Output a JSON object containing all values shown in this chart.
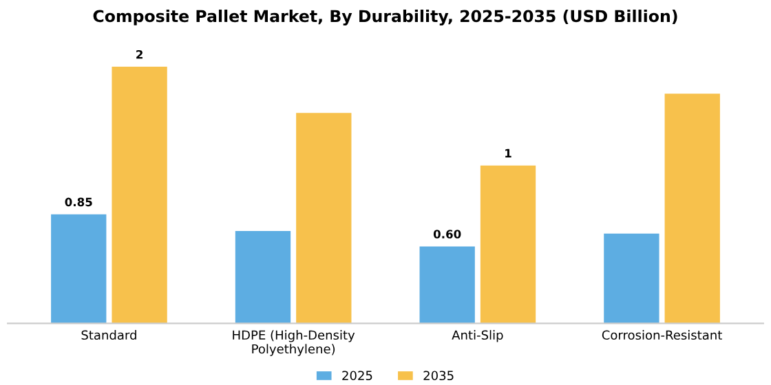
{
  "chart_data": {
    "type": "bar",
    "title": "Composite Pallet Market, By Durability, 2025-2035 (USD Billion)",
    "categories": [
      "Standard",
      "HDPE (High-Density\nPolyethylene)",
      "Anti-Slip",
      "Corrosion-Resistant"
    ],
    "series": [
      {
        "name": "2025",
        "color": "#5dade2",
        "values": [
          0.85,
          0.72,
          0.6,
          0.7
        ],
        "value_labels": [
          "0.85",
          null,
          "0.60",
          null
        ]
      },
      {
        "name": "2035",
        "color": "#f7c14c",
        "values": [
          2,
          1.64,
          1.23,
          1.79
        ],
        "value_labels": [
          "2",
          null,
          "1",
          null
        ]
      }
    ],
    "legend": "bottom",
    "grid": false
  }
}
